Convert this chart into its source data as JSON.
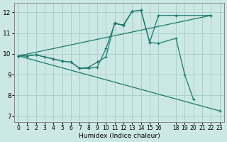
{
  "xlabel": "Humidex (Indice chaleur)",
  "xlim": [
    -0.5,
    23.5
  ],
  "ylim": [
    6.7,
    12.45
  ],
  "yticks": [
    7,
    8,
    9,
    10,
    11,
    12
  ],
  "xticks": [
    0,
    1,
    2,
    3,
    4,
    5,
    6,
    7,
    8,
    9,
    10,
    11,
    12,
    13,
    14,
    15,
    16,
    18,
    19,
    20,
    21,
    22,
    23
  ],
  "bg_color": "#cce8e4",
  "grid_color": "#aad0cb",
  "line_color": "#1a7a6e",
  "lines": [
    {
      "x": [
        0,
        1,
        2,
        3,
        4,
        5,
        6,
        7,
        8,
        9,
        10,
        11,
        12,
        13,
        14,
        15,
        16,
        18,
        19,
        20
      ],
      "y": [
        9.9,
        9.9,
        9.95,
        9.85,
        9.75,
        9.65,
        9.6,
        9.3,
        9.3,
        9.35,
        10.25,
        11.45,
        11.4,
        12.05,
        12.1,
        10.55,
        10.5,
        10.75,
        9.0,
        7.8
      ]
    },
    {
      "x": [
        0,
        1,
        2,
        3,
        4,
        5,
        6,
        7,
        8,
        9,
        10,
        11,
        12,
        13,
        14,
        15,
        16,
        18,
        22
      ],
      "y": [
        9.9,
        9.9,
        9.95,
        9.85,
        9.75,
        9.65,
        9.6,
        9.3,
        9.35,
        9.6,
        9.85,
        11.5,
        11.35,
        12.05,
        12.1,
        10.55,
        11.85,
        11.85,
        11.85
      ]
    },
    {
      "x": [
        0,
        22
      ],
      "y": [
        9.9,
        11.85
      ]
    },
    {
      "x": [
        0,
        23
      ],
      "y": [
        9.9,
        7.25
      ]
    }
  ]
}
